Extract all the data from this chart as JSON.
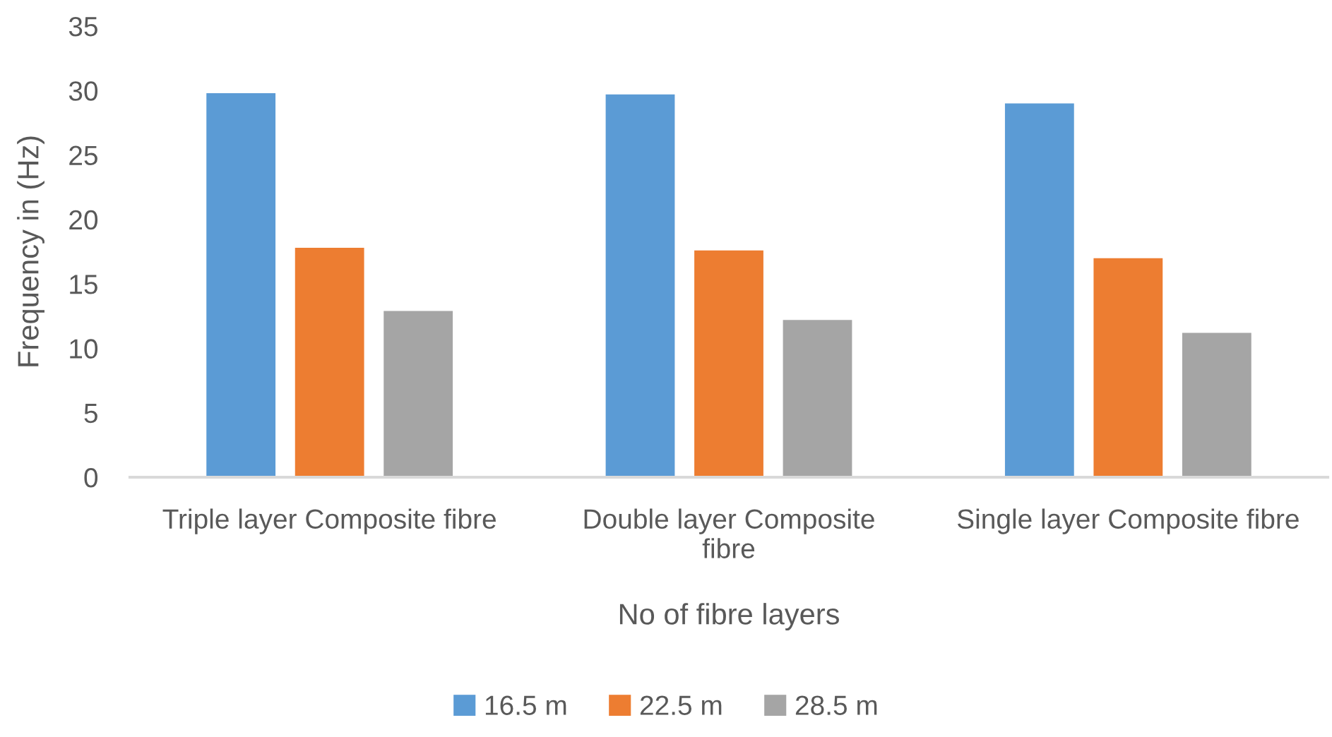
{
  "chart_data": {
    "type": "bar",
    "xlabel": "No of fibre layers",
    "ylabel": "Frequency in (Hz)",
    "categories": [
      "Triple layer Composite fibre",
      "Double layer Composite\nfibre",
      "Single layer Composite fibre"
    ],
    "series": [
      {
        "name": "16.5 m",
        "color": "#5b9bd5",
        "values": [
          29.8,
          29.7,
          29.0
        ]
      },
      {
        "name": "22.5 m",
        "color": "#ed7d31",
        "values": [
          17.8,
          17.6,
          17.0
        ]
      },
      {
        "name": "28.5 m",
        "color": "#a5a5a5",
        "values": [
          12.9,
          12.2,
          11.2
        ]
      }
    ],
    "ylim": [
      0,
      35
    ],
    "yticks": [
      0,
      5,
      10,
      15,
      20,
      25,
      30,
      35
    ],
    "grid": false,
    "legend": "bottom"
  }
}
